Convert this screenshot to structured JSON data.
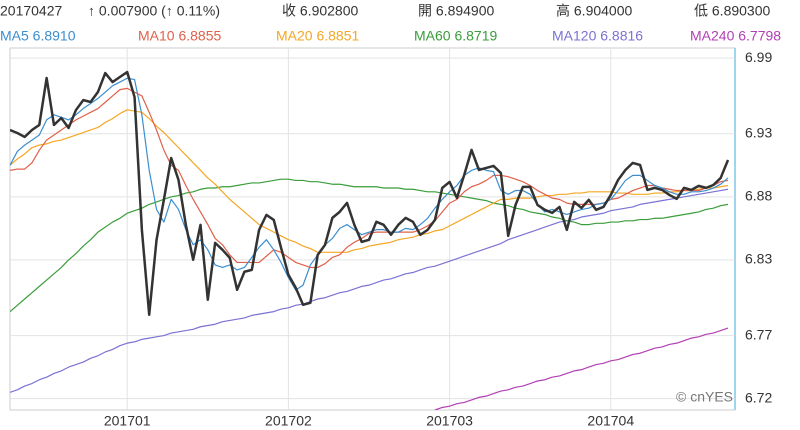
{
  "header": {
    "date": "20170427",
    "change": "↑ 0.007900 (↑ 0.11%)",
    "close": "收 6.902800",
    "open": "開 6.894900",
    "high": "高 6.904000",
    "low": "低 6.890300"
  },
  "watermark": "© cnYES",
  "chart_data": {
    "type": "line",
    "categories": [
      null,
      null,
      null,
      null,
      null,
      null,
      null,
      null,
      null,
      null,
      null,
      null,
      null,
      null,
      null,
      null,
      "201701",
      null,
      null,
      null,
      null,
      null,
      null,
      null,
      null,
      null,
      null,
      null,
      null,
      null,
      null,
      null,
      null,
      null,
      null,
      null,
      null,
      null,
      "201702",
      null,
      null,
      null,
      null,
      null,
      null,
      null,
      null,
      null,
      null,
      null,
      null,
      null,
      null,
      null,
      null,
      null,
      null,
      null,
      null,
      null,
      "201703",
      null,
      null,
      null,
      null,
      null,
      null,
      null,
      null,
      null,
      null,
      null,
      null,
      null,
      null,
      null,
      null,
      null,
      null,
      null,
      null,
      null,
      "201704",
      null,
      null,
      null,
      null,
      null,
      null,
      null,
      null,
      null,
      null,
      null,
      null,
      null,
      null,
      null,
      null
    ],
    "ylim": [
      6.711,
      6.998
    ],
    "yticks": [
      6.72,
      6.77,
      6.83,
      6.88,
      6.93,
      6.99
    ],
    "grid": true,
    "series": [
      {
        "name": "MA240 6.7798",
        "color": "#b23fb5",
        "values": [
          null,
          null,
          null,
          null,
          null,
          null,
          null,
          null,
          null,
          null,
          null,
          null,
          null,
          null,
          null,
          null,
          null,
          null,
          null,
          null,
          null,
          null,
          null,
          null,
          null,
          null,
          null,
          null,
          null,
          null,
          null,
          null,
          null,
          null,
          null,
          null,
          null,
          null,
          null,
          null,
          null,
          null,
          null,
          null,
          null,
          null,
          null,
          null,
          null,
          null,
          null,
          null,
          null,
          null,
          null,
          null,
          null,
          null,
          6.711,
          6.713,
          6.714,
          6.716,
          6.717,
          6.719,
          6.721,
          6.722,
          6.724,
          6.726,
          6.727,
          6.729,
          6.73,
          6.732,
          6.734,
          6.735,
          6.737,
          6.738,
          6.74,
          6.742,
          6.743,
          6.745,
          6.747,
          6.748,
          6.75,
          6.751,
          6.753,
          6.755,
          6.756,
          6.758,
          6.76,
          6.761,
          6.763,
          6.764,
          6.766,
          6.768,
          6.769,
          6.771,
          6.772,
          6.774,
          6.776
        ]
      },
      {
        "name": "MA120 6.8816",
        "color": "#7b72d4",
        "values": [
          6.725,
          6.727,
          6.73,
          6.732,
          6.735,
          6.737,
          6.74,
          6.742,
          6.745,
          6.747,
          6.749,
          6.752,
          6.754,
          6.757,
          6.759,
          6.762,
          6.764,
          6.765,
          6.767,
          6.768,
          6.769,
          6.77,
          6.772,
          6.773,
          6.774,
          6.775,
          6.777,
          6.778,
          6.779,
          6.781,
          6.782,
          6.783,
          6.784,
          6.786,
          6.787,
          6.788,
          6.789,
          6.791,
          6.792,
          6.794,
          6.795,
          6.797,
          6.799,
          6.8,
          6.802,
          6.804,
          6.805,
          6.807,
          6.809,
          6.81,
          6.812,
          6.814,
          6.815,
          6.817,
          6.819,
          6.82,
          6.822,
          6.824,
          6.825,
          6.827,
          6.829,
          6.831,
          6.833,
          6.835,
          6.837,
          6.839,
          6.841,
          6.843,
          6.846,
          6.848,
          6.85,
          6.852,
          6.854,
          6.856,
          6.858,
          6.86,
          6.861,
          6.862,
          6.864,
          6.865,
          6.866,
          6.867,
          6.869,
          6.87,
          6.871,
          6.872,
          6.874,
          6.875,
          6.876,
          6.877,
          6.878,
          6.879,
          6.88,
          6.881,
          6.882,
          6.883,
          6.884,
          6.885,
          6.886
        ]
      },
      {
        "name": "MA60 6.8719",
        "color": "#3a9d3a",
        "values": [
          6.789,
          6.794,
          6.799,
          6.804,
          6.809,
          6.814,
          6.819,
          6.824,
          6.83,
          6.835,
          6.841,
          6.846,
          6.852,
          6.856,
          6.86,
          6.863,
          6.867,
          6.869,
          6.871,
          6.874,
          6.876,
          6.878,
          6.88,
          6.881,
          6.883,
          6.884,
          6.886,
          6.887,
          6.887,
          6.888,
          6.888,
          6.889,
          6.89,
          6.891,
          6.891,
          6.892,
          6.893,
          6.894,
          6.894,
          6.893,
          6.893,
          6.892,
          6.892,
          6.891,
          6.89,
          6.89,
          6.889,
          6.888,
          6.888,
          6.888,
          6.888,
          6.887,
          6.887,
          6.887,
          6.886,
          6.886,
          6.885,
          6.884,
          6.884,
          6.883,
          6.882,
          6.881,
          6.88,
          6.879,
          6.878,
          6.877,
          6.875,
          6.874,
          6.873,
          6.871,
          6.87,
          6.868,
          6.867,
          6.866,
          6.864,
          6.863,
          6.861,
          6.86,
          6.858,
          6.858,
          6.859,
          6.859,
          6.86,
          6.86,
          6.861,
          6.861,
          6.862,
          6.862,
          6.863,
          6.863,
          6.864,
          6.865,
          6.866,
          6.867,
          6.868,
          6.87,
          6.871,
          6.873,
          6.874
        ]
      },
      {
        "name": "MA20 6.8851",
        "color": "#f5a623",
        "values": [
          6.905,
          6.91,
          6.914,
          6.919,
          6.921,
          6.922,
          6.924,
          6.925,
          6.927,
          6.929,
          6.931,
          6.933,
          6.935,
          6.939,
          6.942,
          6.946,
          6.949,
          6.948,
          6.947,
          6.942,
          6.936,
          6.931,
          6.925,
          6.919,
          6.913,
          6.907,
          6.901,
          6.895,
          6.89,
          6.884,
          6.878,
          6.873,
          6.868,
          6.863,
          6.858,
          6.855,
          6.852,
          6.849,
          6.846,
          6.844,
          6.841,
          6.839,
          6.836,
          6.836,
          6.836,
          6.836,
          6.836,
          6.838,
          6.839,
          6.841,
          6.842,
          6.843,
          6.844,
          6.846,
          6.847,
          6.848,
          6.85,
          6.851,
          6.853,
          6.854,
          6.857,
          6.86,
          6.863,
          6.866,
          6.869,
          6.872,
          6.875,
          6.878,
          6.878,
          6.879,
          6.879,
          6.879,
          6.88,
          6.881,
          6.881,
          6.882,
          6.882,
          6.883,
          6.883,
          6.884,
          6.884,
          6.884,
          6.884,
          6.883,
          6.883,
          6.882,
          6.882,
          6.882,
          6.883,
          6.883,
          6.884,
          6.884,
          6.885,
          6.885,
          6.886,
          6.887,
          6.887,
          6.888,
          6.889
        ]
      },
      {
        "name": "MA10 6.8855",
        "color": "#e0604a",
        "values": [
          6.901,
          6.902,
          6.902,
          6.907,
          6.917,
          6.925,
          6.929,
          6.933,
          6.937,
          6.941,
          6.944,
          6.947,
          6.95,
          6.955,
          6.96,
          6.965,
          6.966,
          6.963,
          6.96,
          6.947,
          6.933,
          6.917,
          6.905,
          6.901,
          6.889,
          6.878,
          6.868,
          6.858,
          6.847,
          6.842,
          6.834,
          6.828,
          6.828,
          6.828,
          6.828,
          6.833,
          6.838,
          6.836,
          6.832,
          6.828,
          6.826,
          6.824,
          6.824,
          6.827,
          6.832,
          6.834,
          6.84,
          6.844,
          6.847,
          6.851,
          6.852,
          6.852,
          6.852,
          6.852,
          6.852,
          6.852,
          6.854,
          6.857,
          6.861,
          6.868,
          6.875,
          6.878,
          6.884,
          6.888,
          6.89,
          6.893,
          6.897,
          6.897,
          6.896,
          6.894,
          6.892,
          6.889,
          6.885,
          6.882,
          6.879,
          6.878,
          6.875,
          6.874,
          6.874,
          6.874,
          6.874,
          6.875,
          6.878,
          6.879,
          6.882,
          6.885,
          6.887,
          6.889,
          6.889,
          6.887,
          6.886,
          6.885,
          6.885,
          6.885,
          6.885,
          6.887,
          6.889,
          6.892,
          6.893
        ]
      },
      {
        "name": "MA5 6.8910",
        "color": "#3b8ed0",
        "values": [
          6.905,
          6.916,
          6.921,
          6.925,
          6.929,
          6.941,
          6.945,
          6.943,
          6.941,
          6.945,
          6.95,
          6.954,
          6.958,
          6.963,
          6.968,
          6.971,
          6.974,
          6.973,
          6.945,
          6.901,
          6.87,
          6.86,
          6.878,
          6.87,
          6.854,
          6.842,
          6.846,
          6.838,
          6.826,
          6.824,
          6.826,
          6.822,
          6.824,
          6.832,
          6.84,
          6.846,
          6.838,
          6.828,
          6.816,
          6.806,
          6.81,
          6.826,
          6.834,
          6.842,
          6.847,
          6.855,
          6.858,
          6.854,
          6.85,
          6.852,
          6.854,
          6.854,
          6.852,
          6.852,
          6.855,
          6.854,
          6.858,
          6.863,
          6.871,
          6.878,
          6.884,
          6.889,
          6.897,
          6.901,
          6.903,
          6.901,
          6.9,
          6.885,
          6.882,
          6.885,
          6.885,
          6.882,
          6.874,
          6.868,
          6.87,
          6.868,
          6.866,
          6.868,
          6.87,
          6.871,
          6.874,
          6.875,
          6.878,
          6.885,
          6.893,
          6.897,
          6.897,
          6.893,
          6.889,
          6.887,
          6.884,
          6.882,
          6.882,
          6.884,
          6.884,
          6.885,
          6.887,
          6.89,
          6.895
        ]
      },
      {
        "color": "#333333",
        "values": [
          6.933,
          6.9306,
          6.9275,
          6.933,
          6.937,
          6.9742,
          6.937,
          6.9425,
          6.9346,
          6.9488,
          6.9567,
          6.9552,
          6.9631,
          6.9781,
          6.971,
          6.975,
          6.9789,
          6.9591,
          6.8538,
          6.7865,
          6.8459,
          6.8776,
          6.9108,
          6.8934,
          6.8578,
          6.8301,
          6.8578,
          6.7984,
          6.8435,
          6.838,
          6.8316,
          6.8063,
          6.8206,
          6.8221,
          6.8538,
          6.8657,
          6.8617,
          6.8396,
          6.8182,
          6.8079,
          6.7944,
          6.796,
          6.834,
          6.8419,
          6.8633,
          6.8681,
          6.8752,
          6.8578,
          6.8443,
          6.8459,
          6.8602,
          6.8578,
          6.8499,
          6.8578,
          6.8633,
          6.8602,
          6.8499,
          6.8538,
          6.8617,
          6.8871,
          6.8918,
          6.8792,
          6.8974,
          6.9172,
          6.9013,
          6.9029,
          6.9045,
          6.8989,
          6.8491,
          6.8736,
          6.8879,
          6.8879,
          6.8736,
          6.8697,
          6.8673,
          6.872,
          6.8538,
          6.876,
          6.8712,
          6.8776,
          6.8697,
          6.872,
          6.8815,
          6.8934,
          6.9013,
          6.9069,
          6.9053,
          6.8855,
          6.8871,
          6.8855,
          6.8815,
          6.8784,
          6.8871,
          6.8855,
          6.8887,
          6.8871,
          6.8894,
          6.895,
          6.9092
        ]
      }
    ]
  }
}
